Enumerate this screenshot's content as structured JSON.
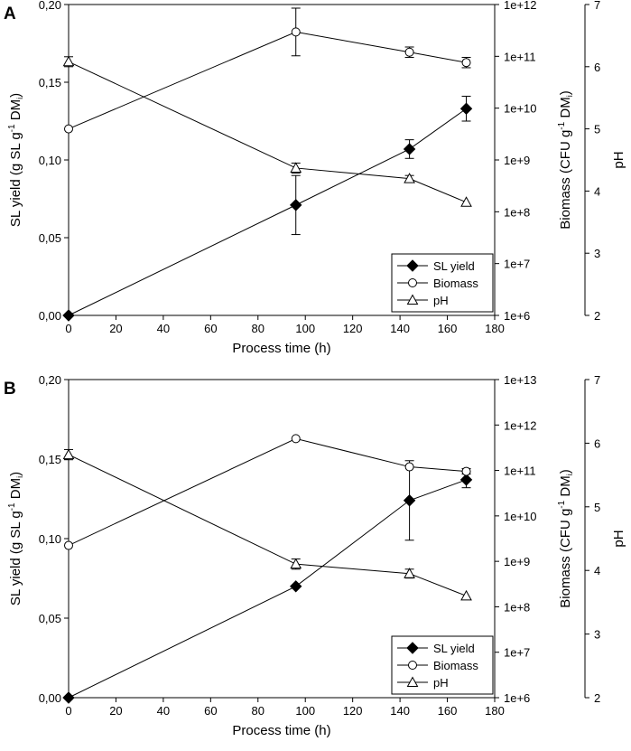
{
  "figure": {
    "colors": {
      "axis": "#000000",
      "marker_fill_open": "#ffffff",
      "marker_fill_solid": "#000000"
    }
  },
  "chart_data": [
    {
      "panel": "A",
      "type": "line",
      "xlabel": "Process time (h)",
      "x_ticks": [
        "0",
        "20",
        "40",
        "60",
        "80",
        "100",
        "120",
        "140",
        "160",
        "180"
      ],
      "xlim": [
        0,
        180
      ],
      "left_axis": {
        "label": "SL yield (g SL g⁻¹ DMᵢ)",
        "label_parts": [
          "SL yield (g SL g",
          "-1",
          " DM",
          "i",
          ")"
        ],
        "ylim": [
          0,
          0.2
        ],
        "tick_values": [
          0,
          0.05,
          0.1,
          0.15,
          0.2
        ],
        "tick_labels": [
          "0,00",
          "0,05",
          "0,10",
          "0,15",
          "0,20"
        ]
      },
      "right_axis_1": {
        "label": "Biomass (CFU g⁻¹ DMᵢ)",
        "label_parts": [
          "Biomass (CFU g",
          "-1",
          " DM",
          "i",
          ")"
        ],
        "scale": "log10",
        "ylim_exp": [
          6,
          12
        ],
        "tick_exps": [
          6,
          7,
          8,
          9,
          10,
          11,
          12
        ],
        "tick_labels": [
          "1e+6",
          "1e+7",
          "1e+8",
          "1e+9",
          "1e+10",
          "1e+11",
          "1e+12"
        ]
      },
      "right_axis_2": {
        "label": "pH",
        "ylim": [
          2,
          7
        ],
        "tick_values": [
          2,
          3,
          4,
          5,
          6,
          7
        ],
        "tick_labels": [
          "2",
          "3",
          "4",
          "5",
          "6",
          "7"
        ]
      },
      "series": [
        {
          "name": "SL yield",
          "axis": "left",
          "marker": "diamond-filled",
          "x": [
            0,
            96,
            144,
            168
          ],
          "y": [
            0.0,
            0.071,
            0.107,
            0.133
          ],
          "err": [
            0,
            0.019,
            0.006,
            0.008
          ]
        },
        {
          "name": "Biomass",
          "axis": "right1",
          "marker": "circle-open",
          "scale": "log10",
          "x": [
            0,
            96,
            144,
            168
          ],
          "y_exp": [
            9.6,
            11.47,
            11.08,
            10.88
          ],
          "err_exp": [
            0,
            0.46,
            0.1,
            0.1
          ]
        },
        {
          "name": "pH",
          "axis": "right2",
          "marker": "triangle-open",
          "x": [
            0,
            96,
            144,
            168
          ],
          "y": [
            6.08,
            4.37,
            4.2,
            3.82
          ],
          "err": [
            0.08,
            0.08,
            0.05,
            0
          ]
        }
      ],
      "legend": {
        "entries": [
          "SL yield",
          "Biomass",
          "pH"
        ],
        "position": "lower-right"
      }
    },
    {
      "panel": "B",
      "type": "line",
      "xlabel": "Process time (h)",
      "x_ticks": [
        "0",
        "20",
        "40",
        "60",
        "80",
        "100",
        "120",
        "140",
        "160",
        "180"
      ],
      "xlim": [
        0,
        180
      ],
      "left_axis": {
        "label": "SL yield (g SL g⁻¹ DMᵢ)",
        "label_parts": [
          "SL yield (g SL g",
          "-1",
          " DM",
          "i",
          ")"
        ],
        "ylim": [
          0,
          0.2
        ],
        "tick_values": [
          0,
          0.05,
          0.1,
          0.15,
          0.2
        ],
        "tick_labels": [
          "0,00",
          "0,05",
          "0,10",
          "0,15",
          "0,20"
        ]
      },
      "right_axis_1": {
        "label": "Biomass (CFU g⁻¹ DMᵢ)",
        "label_parts": [
          "Biomass (CFU g",
          "-1",
          " DM",
          "i",
          ")"
        ],
        "scale": "log10",
        "ylim_exp": [
          6,
          13
        ],
        "tick_exps": [
          6,
          7,
          8,
          9,
          10,
          11,
          12,
          13
        ],
        "tick_labels": [
          "1e+6",
          "1e+7",
          "1e+8",
          "1e+9",
          "1e+10",
          "1e+11",
          "1e+12",
          "1e+13"
        ]
      },
      "right_axis_2": {
        "label": "pH",
        "ylim": [
          2,
          7
        ],
        "tick_values": [
          2,
          3,
          4,
          5,
          6,
          7
        ],
        "tick_labels": [
          "2",
          "3",
          "4",
          "5",
          "6",
          "7"
        ]
      },
      "series": [
        {
          "name": "SL yield",
          "axis": "left",
          "marker": "diamond-filled",
          "x": [
            0,
            96,
            144,
            168
          ],
          "y": [
            0.0,
            0.07,
            0.124,
            0.137
          ],
          "err": [
            0,
            0,
            0.025,
            0.005
          ]
        },
        {
          "name": "Biomass",
          "axis": "right1",
          "marker": "circle-open",
          "scale": "log10",
          "x": [
            0,
            96,
            144,
            168
          ],
          "y_exp": [
            9.35,
            11.7,
            11.08,
            10.98
          ],
          "err_exp": [
            0,
            0,
            0,
            0.06
          ]
        },
        {
          "name": "pH",
          "axis": "right2",
          "marker": "triangle-open",
          "x": [
            0,
            96,
            144,
            168
          ],
          "y": [
            5.82,
            4.1,
            3.95,
            3.6
          ],
          "err": [
            0.08,
            0.08,
            0.07,
            0
          ]
        }
      ],
      "legend": {
        "entries": [
          "SL yield",
          "Biomass",
          "pH"
        ],
        "position": "lower-right"
      }
    }
  ]
}
